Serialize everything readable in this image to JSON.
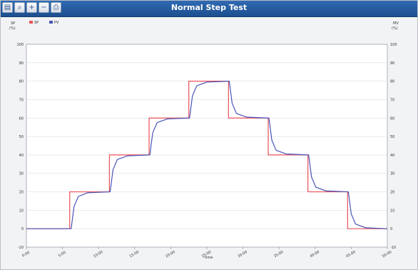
{
  "window": {
    "title": "Normal Step Test"
  },
  "toolbar": {
    "buttons": [
      {
        "name": "open-icon",
        "glyph": "▤"
      },
      {
        "name": "magnify-icon",
        "glyph": "⌕"
      },
      {
        "name": "zoom-in-icon",
        "glyph": "+"
      },
      {
        "name": "zoom-out-icon",
        "glyph": "−"
      },
      {
        "name": "print-icon",
        "glyph": "⎙"
      }
    ]
  },
  "chart_data": {
    "type": "line",
    "title": "",
    "left_axis": {
      "unit_top": "(%)",
      "label_top": "SP",
      "ylim": [
        -10,
        100
      ],
      "ticks": [
        -10,
        0,
        10,
        20,
        30,
        40,
        50,
        60,
        70,
        80,
        90,
        100
      ]
    },
    "right_axis": {
      "unit_top": "(%)",
      "label_top": "MV",
      "ylim": [
        -10,
        100
      ],
      "ticks": [
        -10,
        0,
        10,
        20,
        30,
        40,
        50,
        60,
        70,
        80,
        90,
        100
      ]
    },
    "xlabel": "time",
    "x_ticks": [
      "0:00",
      "5:00",
      "10:00",
      "15:00",
      "20:00",
      "25:00",
      "30:00",
      "35:00",
      "40:00",
      "45:00",
      "50:00"
    ],
    "xlim": [
      0,
      50
    ],
    "legend": [
      {
        "name": "SP",
        "color": "#e8525c"
      },
      {
        "name": "PV",
        "color": "#4a55b8"
      }
    ],
    "series": [
      {
        "name": "SP",
        "color": "#e8525c",
        "x": [
          0,
          6,
          6,
          11.5,
          11.5,
          17,
          17,
          22.5,
          22.5,
          28,
          28,
          33.5,
          33.5,
          39,
          39,
          44.5,
          44.5,
          50
        ],
        "y": [
          0,
          0,
          20,
          20,
          40,
          40,
          60,
          60,
          80,
          80,
          60,
          60,
          40,
          40,
          20,
          20,
          0,
          0
        ]
      },
      {
        "name": "PV",
        "color": "#4a55b8",
        "x": [
          0,
          6.2,
          6.6,
          7.2,
          8.5,
          11.6,
          12.0,
          12.6,
          14.0,
          17.1,
          17.5,
          18.1,
          19.5,
          22.6,
          23.0,
          23.6,
          25.0,
          28.1,
          28.5,
          29.1,
          30.5,
          33.6,
          34.0,
          34.6,
          36.0,
          39.1,
          39.5,
          40.1,
          41.5,
          44.6,
          45.0,
          45.6,
          47.0,
          50
        ],
        "y": [
          0,
          0,
          12,
          17.5,
          19.5,
          20,
          32,
          37.5,
          39.5,
          40,
          52,
          57.5,
          59.5,
          60,
          72,
          77.5,
          79.5,
          80,
          68,
          62.5,
          60.5,
          60,
          48,
          42.5,
          40.5,
          40,
          28,
          22.5,
          20.5,
          20,
          8,
          2.5,
          0.5,
          0
        ]
      }
    ],
    "grid": true,
    "legend_placement": "top-left"
  }
}
